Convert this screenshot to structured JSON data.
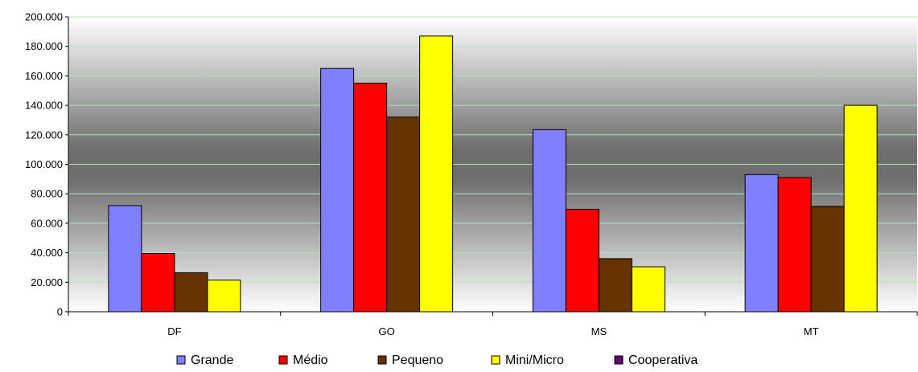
{
  "chart_data": {
    "type": "bar",
    "categories": [
      "DF",
      "GO",
      "MS",
      "MT"
    ],
    "series": [
      {
        "name": "Grande",
        "values": [
          72000,
          165000,
          123500,
          93000
        ],
        "color": "#8080FF"
      },
      {
        "name": "Médio",
        "values": [
          39500,
          155000,
          69500,
          91000
        ],
        "color": "#FF0000"
      },
      {
        "name": "Pequeno",
        "values": [
          26500,
          132000,
          36000,
          71500
        ],
        "color": "#663300"
      },
      {
        "name": "Mini/Micro",
        "values": [
          21500,
          187000,
          30500,
          140000
        ],
        "color": "#FFFF00"
      },
      {
        "name": "Cooperativa",
        "values": [
          0,
          0,
          0,
          0
        ],
        "color": "#660066"
      }
    ],
    "yticks": [
      "0",
      "20.000",
      "40.000",
      "60.000",
      "80.000",
      "100.000",
      "120.000",
      "140.000",
      "160.000",
      "180.000",
      "200.000"
    ],
    "ylim": [
      0,
      200000
    ],
    "grid": true,
    "legend": "bottom"
  }
}
